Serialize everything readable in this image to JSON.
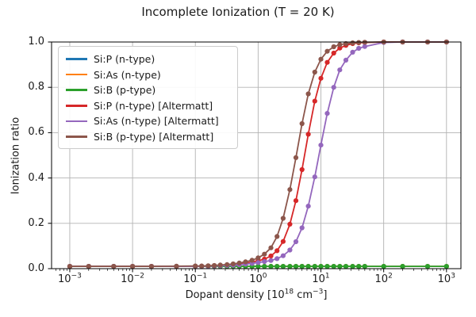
{
  "chart_data": {
    "type": "line",
    "title": "Incomplete Ionization (T = 20 K)",
    "ylabel": "Ionization ratio",
    "xlabel_plain": "Dopant density [10^18 cm^-3]",
    "xlabel_parts": {
      "pre": "Dopant density [10",
      "sup1": "18",
      "mid": " cm",
      "sup2": "−3",
      "post": "]"
    },
    "xscale": "log",
    "xlim_log": [
      -3.29,
      3.23
    ],
    "ylim": [
      0,
      1
    ],
    "grid": true,
    "legend_position": "upper left",
    "grid_color": "#b3b3b3",
    "xticks": [
      {
        "v": 0.001,
        "mantissa": "10",
        "exp": "−3"
      },
      {
        "v": 0.01,
        "mantissa": "10",
        "exp": "−2"
      },
      {
        "v": 0.1,
        "mantissa": "10",
        "exp": "−1"
      },
      {
        "v": 1,
        "mantissa": "10",
        "exp": "0"
      },
      {
        "v": 10,
        "mantissa": "10",
        "exp": "1"
      },
      {
        "v": 100,
        "mantissa": "10",
        "exp": "2"
      },
      {
        "v": 1000,
        "mantissa": "10",
        "exp": "3"
      }
    ],
    "yticks": [
      {
        "v": 0.0,
        "label": "0.0"
      },
      {
        "v": 0.2,
        "label": "0.2"
      },
      {
        "v": 0.4,
        "label": "0.4"
      },
      {
        "v": 0.6,
        "label": "0.6"
      },
      {
        "v": 0.8,
        "label": "0.8"
      },
      {
        "v": 1.0,
        "label": "1.0"
      }
    ],
    "x": [
      0.001,
      0.002,
      0.005,
      0.01,
      0.02,
      0.05,
      0.1,
      0.126,
      0.16,
      0.2,
      0.25,
      0.32,
      0.4,
      0.5,
      0.63,
      0.8,
      1,
      1.26,
      1.6,
      2,
      2.5,
      3.2,
      4,
      5,
      6.3,
      8,
      10,
      12.6,
      16,
      20,
      25,
      32,
      40,
      50,
      100,
      200,
      500,
      1000
    ],
    "series": [
      {
        "name": "Si:P (n-type)",
        "color": "#1f77b4",
        "marker": "circle",
        "flat_y": 0.01
      },
      {
        "name": "Si:As (n-type)",
        "color": "#ff7f0e",
        "marker": "circle",
        "flat_y": 0.01
      },
      {
        "name": "Si:B (p-type)",
        "color": "#2ca02c",
        "marker": "circle",
        "flat_y": 0.01
      },
      {
        "name": "Si:P (n-type) [Altermatt]",
        "color": "#d62728",
        "marker": "circle",
        "y": [
          0.01,
          0.01,
          0.01,
          0.01,
          0.01,
          0.01,
          0.011,
          0.011,
          0.012,
          0.013,
          0.014,
          0.016,
          0.018,
          0.021,
          0.024,
          0.029,
          0.035,
          0.042,
          0.056,
          0.079,
          0.12,
          0.196,
          0.3,
          0.437,
          0.593,
          0.739,
          0.84,
          0.91,
          0.951,
          0.973,
          0.985,
          0.993,
          0.996,
          0.998,
          1,
          1,
          1,
          1
        ]
      },
      {
        "name": "Si:As (n-type) [Altermatt]",
        "color": "#9467bd",
        "marker": "circle",
        "y": [
          0.01,
          0.01,
          0.01,
          0.01,
          0.01,
          0.01,
          0.01,
          0.011,
          0.011,
          0.012,
          0.013,
          0.014,
          0.015,
          0.017,
          0.02,
          0.023,
          0.027,
          0.031,
          0.036,
          0.044,
          0.057,
          0.082,
          0.119,
          0.18,
          0.276,
          0.405,
          0.545,
          0.685,
          0.8,
          0.877,
          0.92,
          0.955,
          0.972,
          0.98,
          0.998,
          1,
          1,
          1
        ]
      },
      {
        "name": "Si:B (p-type) [Altermatt]",
        "color": "#8c564b",
        "marker": "circle",
        "y": [
          0.01,
          0.01,
          0.01,
          0.01,
          0.01,
          0.011,
          0.012,
          0.012,
          0.013,
          0.014,
          0.016,
          0.018,
          0.021,
          0.025,
          0.03,
          0.037,
          0.048,
          0.064,
          0.092,
          0.142,
          0.222,
          0.349,
          0.49,
          0.64,
          0.771,
          0.867,
          0.924,
          0.959,
          0.979,
          0.988,
          0.993,
          0.996,
          0.998,
          0.999,
          1,
          1,
          1,
          1
        ]
      }
    ]
  }
}
